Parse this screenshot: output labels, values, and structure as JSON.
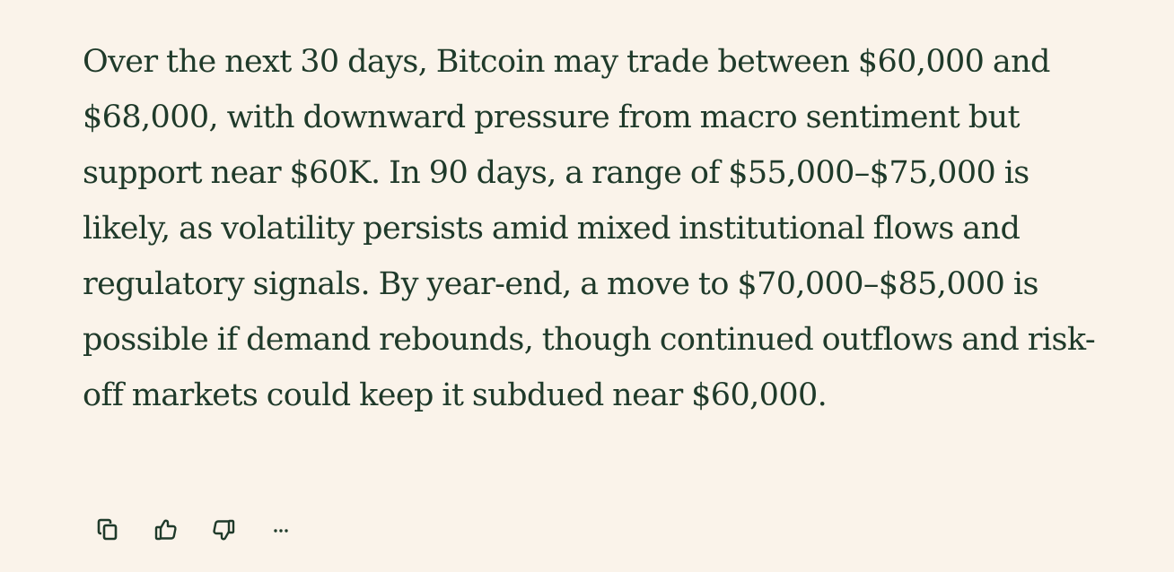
{
  "message": {
    "text": "Over the next 30 days, Bitcoin may trade between $60,000 and $68,000, with downward pressure from macro sentiment but support near $60K. In 90 days, a range of $55,000–$75,000 is likely, as volatility persists amid mixed institutional flows and regulatory signals. By year-end, a move to $70,000–$85,000 is possible if demand rebounds, though continued outflows and risk-off markets could keep it subdued near $60,000."
  },
  "actions": {
    "icons": [
      "copy-icon",
      "thumbs-up-icon",
      "thumbs-down-icon",
      "more-icon"
    ]
  },
  "colors": {
    "background": "#faf3ea",
    "text": "#1f3a2a"
  }
}
